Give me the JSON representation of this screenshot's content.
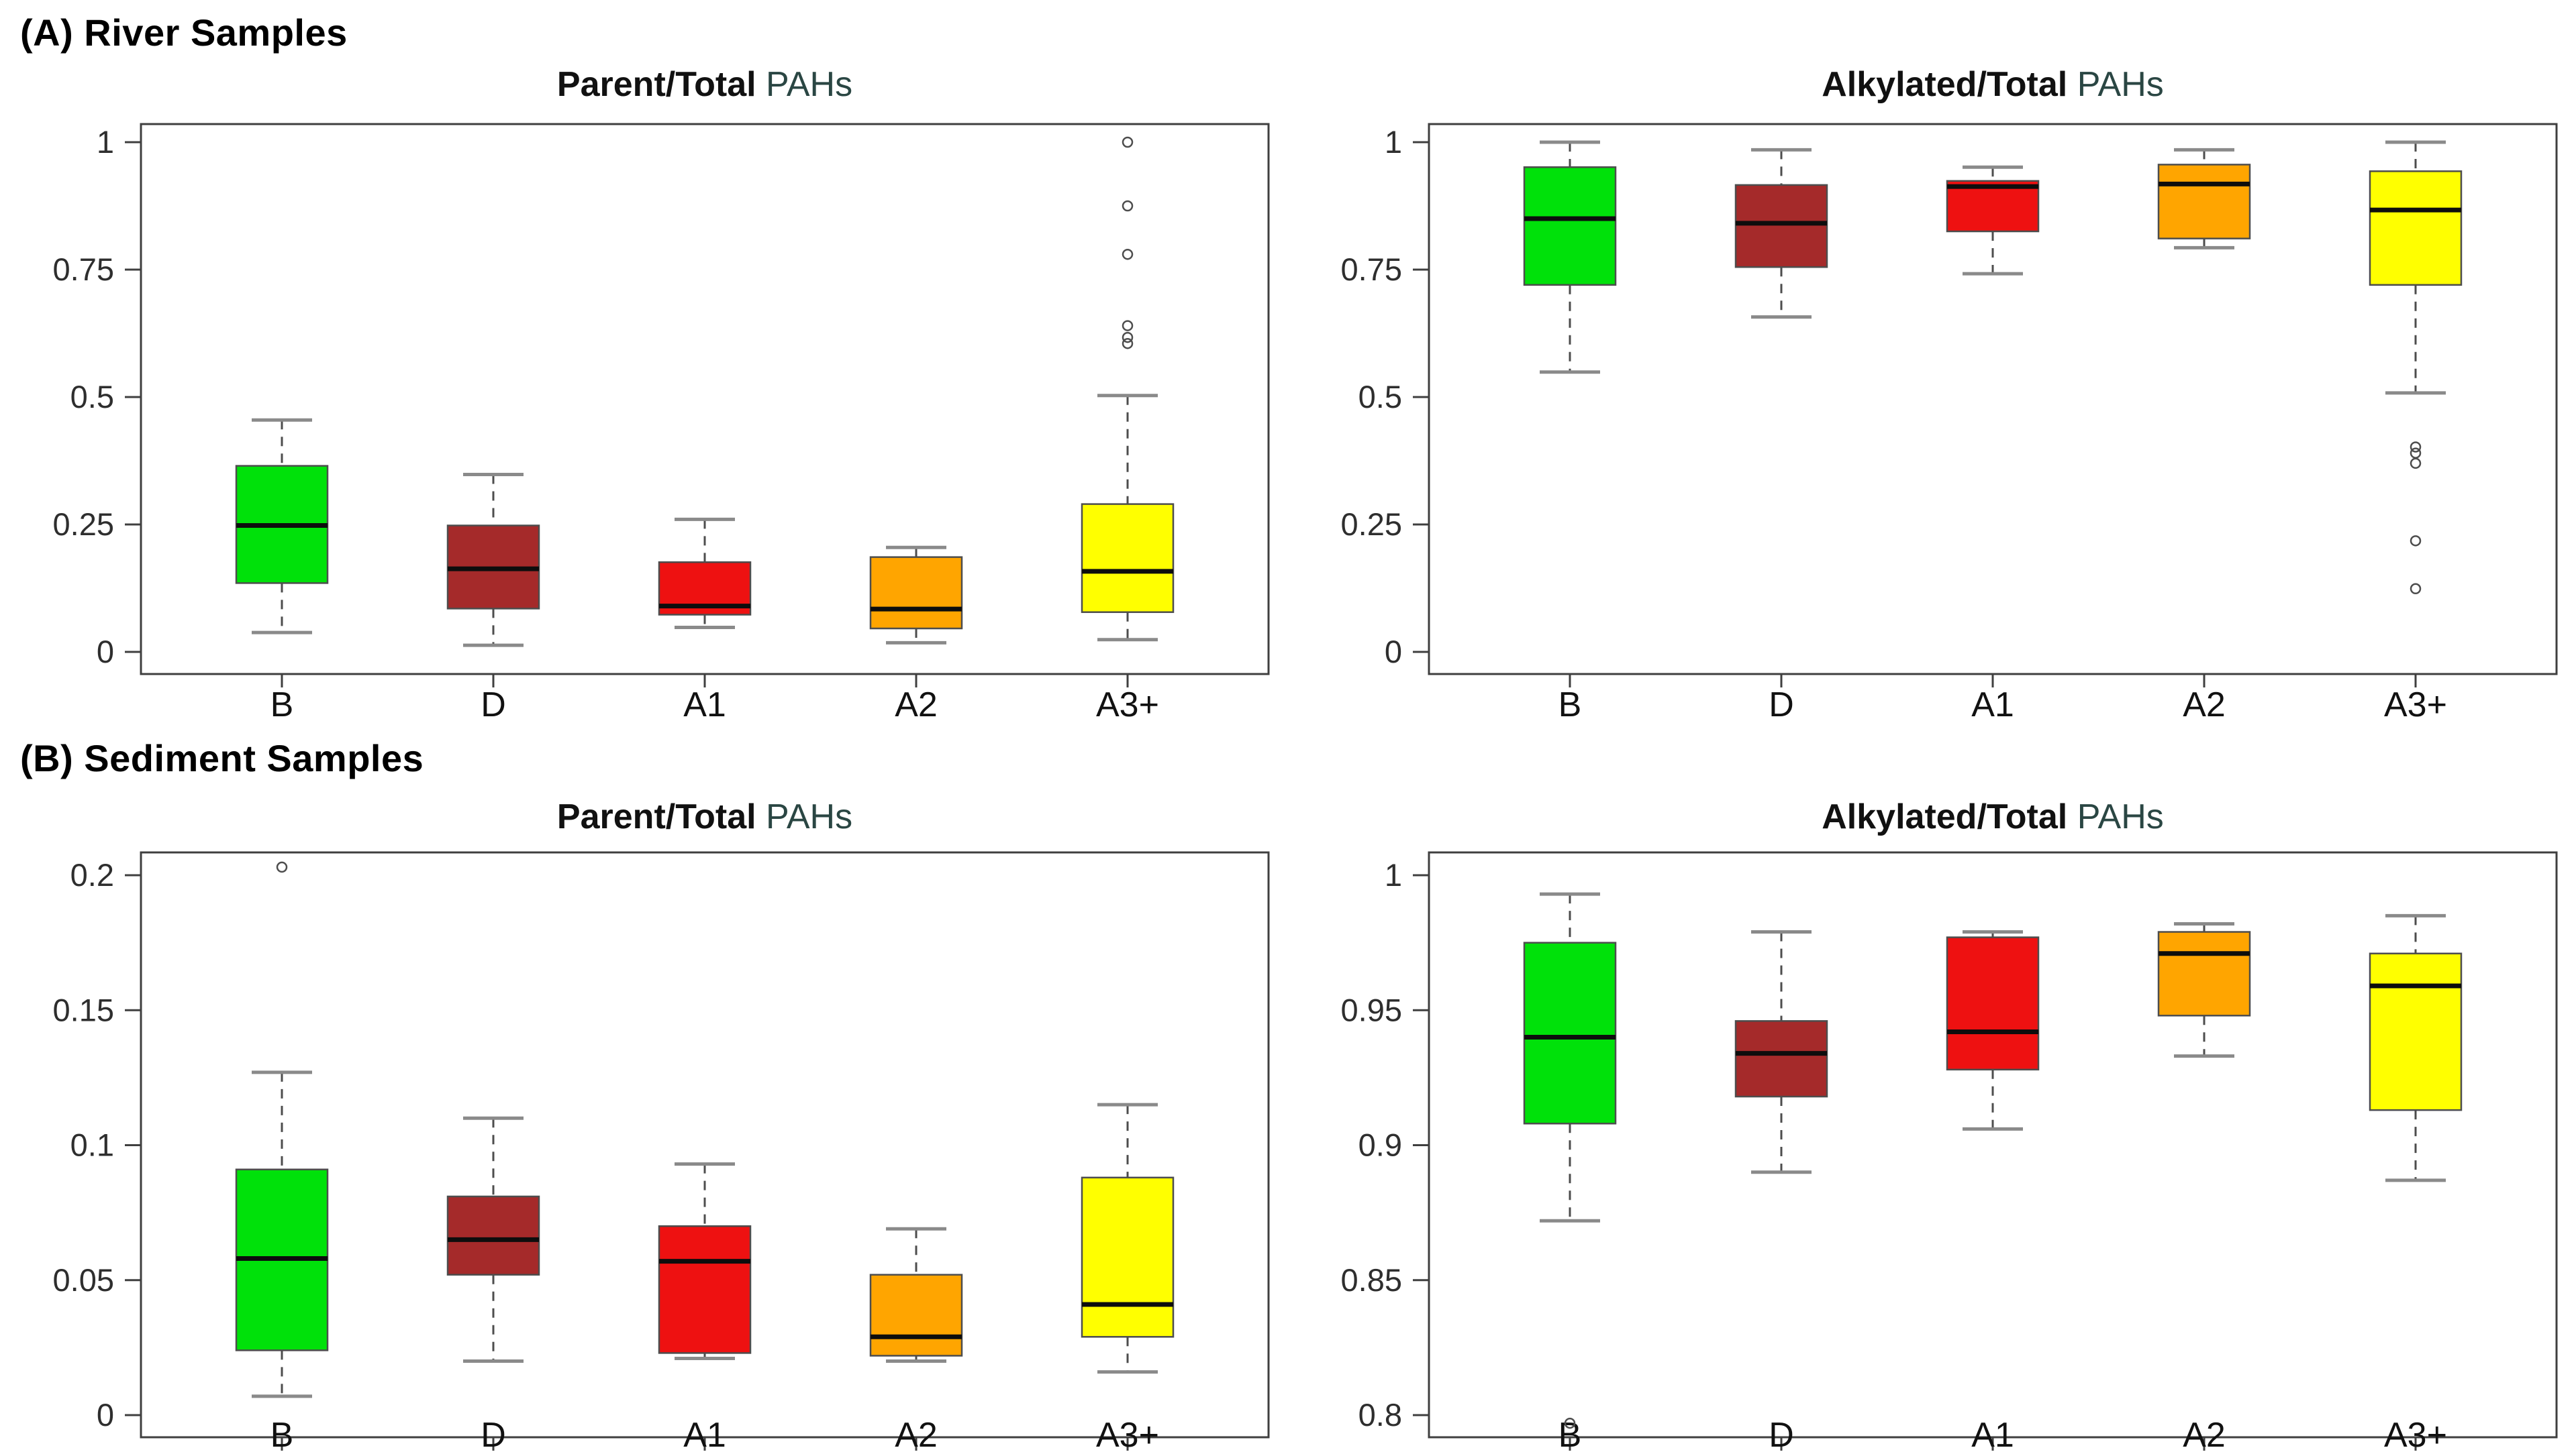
{
  "figure": {
    "section_a_label": "(A) River Samples",
    "section_b_label": "(B) Sediment Samples",
    "title_accent_color": "#2a4643",
    "title_main_color": "#111111",
    "axis_color": "#3f3f3f",
    "tick_label_color": "#2e2e2e",
    "whisker_color": "#4d4d4d",
    "cap_color": "#8a8a8a",
    "median_color": "#0d0d0d",
    "background_color": "#ffffff"
  },
  "categories": [
    "B",
    "D",
    "A1",
    "A2",
    "A3+"
  ],
  "chart_data": [
    {
      "id": "river-parent",
      "type": "boxplot",
      "row": "A",
      "position": "top-left",
      "title_main": "Parent/Total",
      "title_accent": "PAHs",
      "ylim": [
        0,
        1
      ],
      "grid": false,
      "yticks": [
        {
          "v": 1,
          "label": "1"
        },
        {
          "v": 0.75,
          "label": "0.75"
        },
        {
          "v": 0.5,
          "label": "0.5"
        },
        {
          "v": 0.25,
          "label": "0.25"
        },
        {
          "v": 0,
          "label": "0"
        }
      ],
      "boxes": [
        {
          "category": "B",
          "color": "#00e10a",
          "min": 0.038,
          "q1": 0.135,
          "median": 0.248,
          "q3": 0.365,
          "max": 0.455,
          "outliers": []
        },
        {
          "category": "D",
          "color": "#a52a2a",
          "min": 0.013,
          "q1": 0.085,
          "median": 0.163,
          "q3": 0.248,
          "max": 0.348,
          "outliers": []
        },
        {
          "category": "A1",
          "color": "#ee1111",
          "min": 0.048,
          "q1": 0.073,
          "median": 0.09,
          "q3": 0.176,
          "max": 0.26,
          "outliers": []
        },
        {
          "category": "A2",
          "color": "#ffa500",
          "min": 0.018,
          "q1": 0.046,
          "median": 0.084,
          "q3": 0.186,
          "max": 0.205,
          "outliers": []
        },
        {
          "category": "A3+",
          "color": "#ffff00",
          "min": 0.024,
          "q1": 0.078,
          "median": 0.158,
          "q3": 0.29,
          "max": 0.503,
          "outliers": [
            0.605,
            0.617,
            0.64,
            0.78,
            0.875,
            1.0
          ]
        }
      ]
    },
    {
      "id": "river-alkylated",
      "type": "boxplot",
      "row": "A",
      "position": "top-right",
      "title_main": "Alkylated/Total",
      "title_accent": "PAHs",
      "ylim": [
        0,
        1
      ],
      "grid": false,
      "yticks": [
        {
          "v": 1,
          "label": "1"
        },
        {
          "v": 0.75,
          "label": "0.75"
        },
        {
          "v": 0.5,
          "label": "0.5"
        },
        {
          "v": 0.25,
          "label": "0.25"
        },
        {
          "v": 0,
          "label": "0"
        }
      ],
      "boxes": [
        {
          "category": "B",
          "color": "#00e10a",
          "min": 0.549,
          "q1": 0.72,
          "median": 0.85,
          "q3": 0.951,
          "max": 1.0,
          "outliers": []
        },
        {
          "category": "D",
          "color": "#a52a2a",
          "min": 0.657,
          "q1": 0.755,
          "median": 0.841,
          "q3": 0.916,
          "max": 0.985,
          "outliers": []
        },
        {
          "category": "A1",
          "color": "#ee1111",
          "min": 0.742,
          "q1": 0.825,
          "median": 0.913,
          "q3": 0.924,
          "max": 0.951,
          "outliers": []
        },
        {
          "category": "A2",
          "color": "#ffa500",
          "min": 0.793,
          "q1": 0.811,
          "median": 0.918,
          "q3": 0.956,
          "max": 0.985,
          "outliers": []
        },
        {
          "category": "A3+",
          "color": "#ffff00",
          "min": 0.508,
          "q1": 0.72,
          "median": 0.867,
          "q3": 0.943,
          "max": 1.0,
          "outliers": [
            0.124,
            0.218,
            0.37,
            0.39,
            0.402
          ]
        }
      ]
    },
    {
      "id": "sediment-parent",
      "type": "boxplot",
      "row": "B",
      "position": "bottom-left",
      "title_main": "Parent/Total",
      "title_accent": "PAHs",
      "ylim": [
        0,
        0.21
      ],
      "grid": false,
      "yticks": [
        {
          "v": 0.2,
          "label": "0.2"
        },
        {
          "v": 0.15,
          "label": "0.15"
        },
        {
          "v": 0.1,
          "label": "0.1"
        },
        {
          "v": 0.05,
          "label": "0.05"
        },
        {
          "v": 0,
          "label": "0"
        }
      ],
      "boxes": [
        {
          "category": "B",
          "color": "#00e10a",
          "min": 0.007,
          "q1": 0.024,
          "median": 0.058,
          "q3": 0.091,
          "max": 0.127,
          "outliers": [
            0.203
          ]
        },
        {
          "category": "D",
          "color": "#a52a2a",
          "min": 0.02,
          "q1": 0.052,
          "median": 0.065,
          "q3": 0.081,
          "max": 0.11,
          "outliers": []
        },
        {
          "category": "A1",
          "color": "#ee1111",
          "min": 0.021,
          "q1": 0.023,
          "median": 0.057,
          "q3": 0.07,
          "max": 0.093,
          "outliers": []
        },
        {
          "category": "A2",
          "color": "#ffa500",
          "min": 0.02,
          "q1": 0.022,
          "median": 0.029,
          "q3": 0.052,
          "max": 0.069,
          "outliers": []
        },
        {
          "category": "A3+",
          "color": "#ffff00",
          "min": 0.016,
          "q1": 0.029,
          "median": 0.041,
          "q3": 0.088,
          "max": 0.115,
          "outliers": []
        }
      ]
    },
    {
      "id": "sediment-alkylated",
      "type": "boxplot",
      "row": "B",
      "position": "bottom-right",
      "title_main": "Alkylated/Total",
      "title_accent": "PAHs",
      "ylim": [
        0.795,
        1.0
      ],
      "grid": false,
      "yticks": [
        {
          "v": 1,
          "label": "1"
        },
        {
          "v": 0.95,
          "label": "0.95"
        },
        {
          "v": 0.9,
          "label": "0.9"
        },
        {
          "v": 0.85,
          "label": "0.85"
        },
        {
          "v": 0.8,
          "label": "0.8"
        }
      ],
      "boxes": [
        {
          "category": "B",
          "color": "#00e10a",
          "min": 0.872,
          "q1": 0.908,
          "median": 0.94,
          "q3": 0.975,
          "max": 0.993,
          "outliers": [
            0.797
          ]
        },
        {
          "category": "D",
          "color": "#a52a2a",
          "min": 0.89,
          "q1": 0.918,
          "median": 0.934,
          "q3": 0.946,
          "max": 0.979,
          "outliers": []
        },
        {
          "category": "A1",
          "color": "#ee1111",
          "min": 0.906,
          "q1": 0.928,
          "median": 0.942,
          "q3": 0.977,
          "max": 0.979,
          "outliers": []
        },
        {
          "category": "A2",
          "color": "#ffa500",
          "min": 0.933,
          "q1": 0.948,
          "median": 0.971,
          "q3": 0.979,
          "max": 0.982,
          "outliers": []
        },
        {
          "category": "A3+",
          "color": "#ffff00",
          "min": 0.887,
          "q1": 0.913,
          "median": 0.959,
          "q3": 0.971,
          "max": 0.985,
          "outliers": []
        }
      ]
    }
  ]
}
